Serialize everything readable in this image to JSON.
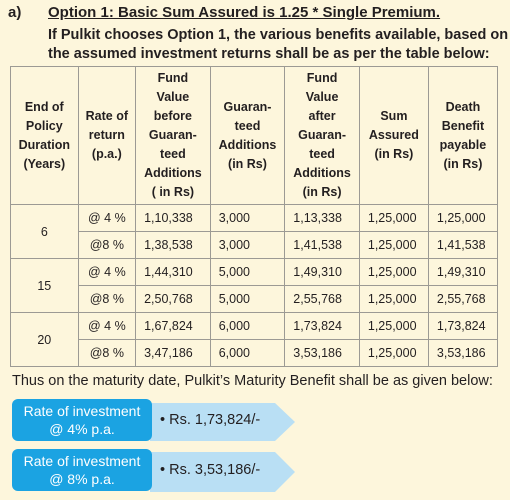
{
  "section": {
    "label": "a)",
    "title": "Option 1: Basic Sum Assured is 1.25 * Single Premium.",
    "intro": [
      "If Pulkit chooses Option 1, the various benefits available, based on",
      "the assumed investment returns shall be as per the table below:"
    ]
  },
  "table": {
    "header": [
      [
        "End of",
        "Policy",
        "Duration",
        "(Years)"
      ],
      [
        "Rate of",
        "return",
        "(p.a.)"
      ],
      [
        "Fund",
        "Value",
        "before",
        "Guaran-",
        "teed",
        "Additions",
        "( in Rs)"
      ],
      [
        "Guaran-",
        "teed",
        "Additions",
        "(in Rs)"
      ],
      [
        "Fund",
        "Value",
        "after",
        "Guaran-",
        "teed",
        "Additions",
        "(in Rs)"
      ],
      [
        "Sum",
        "Assured",
        "(in Rs)"
      ],
      [
        "Death",
        "Benefit",
        "payable",
        "(in Rs)"
      ]
    ],
    "groups": [
      {
        "duration": "6",
        "rows": [
          [
            "@ 4 %",
            "1,10,338",
            "3,000",
            "1,13,338",
            "1,25,000",
            "1,25,000"
          ],
          [
            "@8 %",
            "1,38,538",
            "3,000",
            "1,41,538",
            "1,25,000",
            "1,41,538"
          ]
        ]
      },
      {
        "duration": "15",
        "rows": [
          [
            "@ 4 %",
            "1,44,310",
            "5,000",
            "1,49,310",
            "1,25,000",
            "1,49,310"
          ],
          [
            "@8 %",
            "2,50,768",
            "5,000",
            "2,55,768",
            "1,25,000",
            "2,55,768"
          ]
        ]
      },
      {
        "duration": "20",
        "rows": [
          [
            "@ 4 %",
            "1,67,824",
            "6,000",
            "1,73,824",
            "1,25,000",
            "1,73,824"
          ],
          [
            "@8 %",
            "3,47,186",
            "6,000",
            "3,53,186",
            "1,25,000",
            "3,53,186"
          ]
        ]
      }
    ]
  },
  "conclusion": "Thus on the maturity date, Pulkit’s Maturity Benefit shall be as given below:",
  "benefits": [
    {
      "rate": [
        "Rate of investment",
        "@ 4% p.a."
      ],
      "amount": "Rs. 1,73,824/-"
    },
    {
      "rate": [
        "Rate of investment",
        "@ 8% p.a."
      ],
      "amount": "Rs. 3,53,186/-"
    }
  ]
}
